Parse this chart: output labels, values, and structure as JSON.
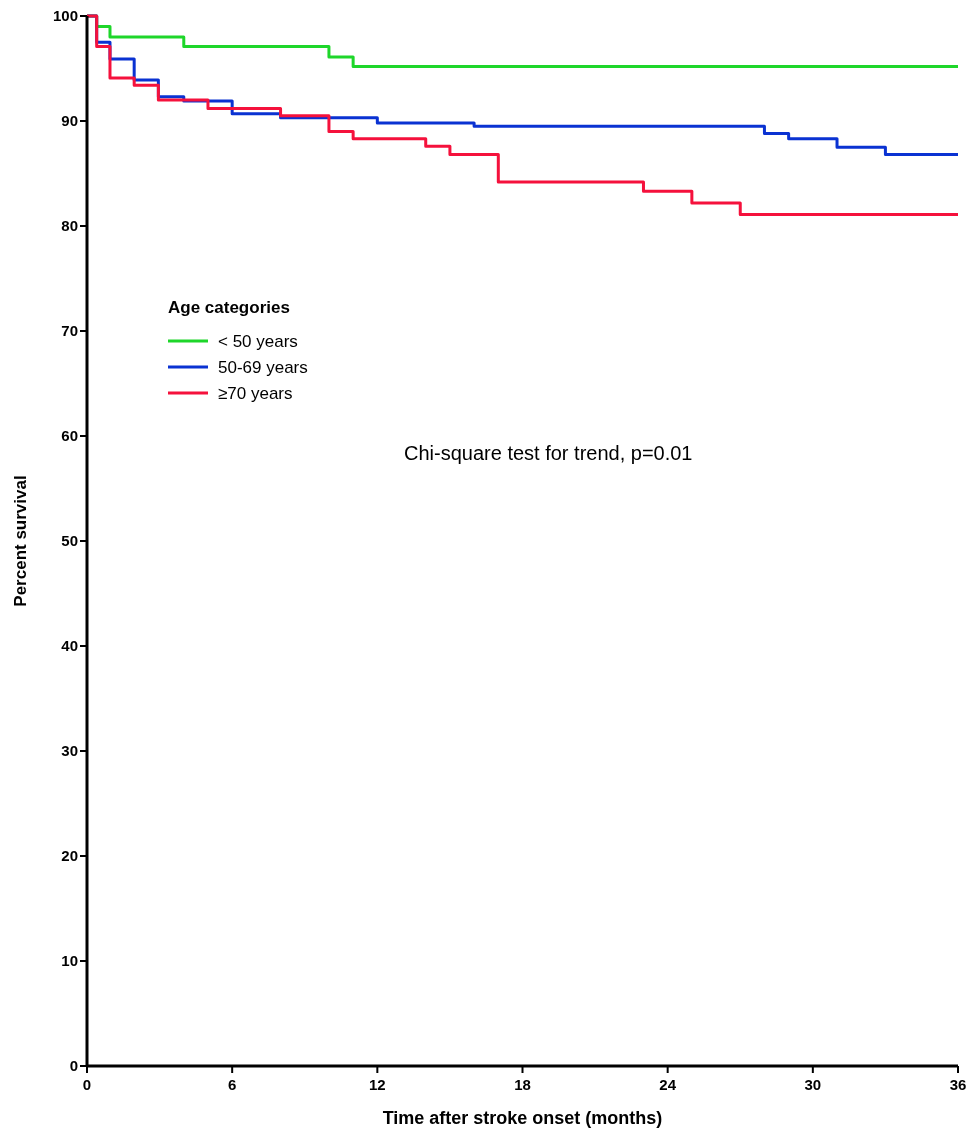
{
  "chart_data": {
    "type": "step",
    "xlabel": "Time after stroke onset (months)",
    "ylabel": "Percent survival",
    "legend_title": "Age categories",
    "legend": "left",
    "grid": false,
    "xlim": [
      0,
      36
    ],
    "ylim": [
      0,
      100
    ],
    "xticks": [
      0,
      6,
      12,
      18,
      24,
      30,
      36
    ],
    "yticks": [
      0,
      10,
      20,
      30,
      40,
      50,
      60,
      70,
      80,
      90,
      100
    ],
    "annotations": [
      "Chi-square test for trend, p=0.01"
    ],
    "series": [
      {
        "name": "< 50 years",
        "color": "#1ed62a",
        "x": [
          0,
          0.4,
          0.95,
          4,
          10,
          11,
          36
        ],
        "values": [
          100,
          99.0,
          98.0,
          97.1,
          96.1,
          95.2,
          95.2
        ]
      },
      {
        "name": "50-69 years",
        "color": "#0a32d2",
        "x": [
          0,
          0.4,
          0.95,
          1.95,
          2.95,
          4,
          6,
          8,
          12,
          16,
          28,
          29,
          31,
          33,
          36
        ],
        "values": [
          100,
          97.5,
          95.9,
          93.9,
          92.3,
          91.9,
          90.7,
          90.3,
          89.8,
          89.5,
          88.8,
          88.3,
          87.5,
          86.8,
          86.8
        ]
      },
      {
        "name": "≥70 years",
        "color": "#f5113c",
        "x": [
          0,
          0.4,
          0.95,
          1.95,
          2.95,
          5,
          8,
          10,
          11,
          14,
          15,
          17,
          23,
          25,
          27,
          36
        ],
        "values": [
          100,
          97.1,
          94.1,
          93.4,
          92.0,
          91.2,
          90.5,
          89.0,
          88.3,
          87.6,
          86.8,
          84.2,
          83.3,
          82.2,
          81.1,
          81.1
        ]
      }
    ]
  }
}
